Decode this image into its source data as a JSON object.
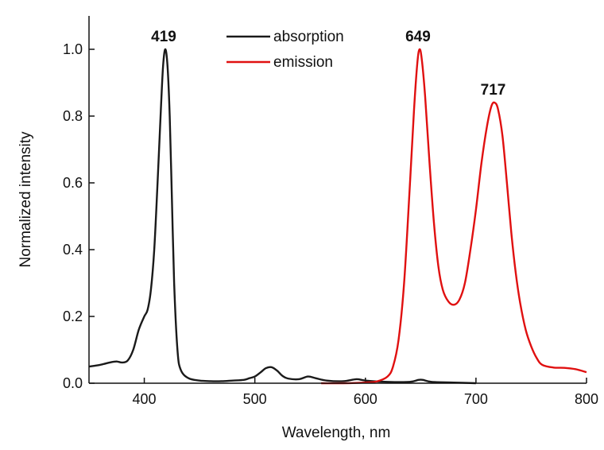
{
  "chart_data": {
    "type": "line",
    "title": "",
    "xlabel": "Wavelength, nm",
    "ylabel": "Normalized intensity",
    "xlim": [
      350,
      800
    ],
    "ylim": [
      0,
      1.1
    ],
    "x_ticks": [
      400,
      500,
      600,
      700,
      800
    ],
    "x_tick_labels": [
      "400",
      "500",
      "600",
      "700",
      "800"
    ],
    "y_ticks": [
      0.0,
      0.2,
      0.4,
      0.6,
      0.8,
      1.0
    ],
    "y_tick_labels": [
      "0.0",
      "0.2",
      "0.4",
      "0.6",
      "0.8",
      "1.0"
    ],
    "grid": false,
    "legend_position": "top-center",
    "series": [
      {
        "name": "absorption",
        "color": "#1a1a1a",
        "points": [
          [
            350,
            0.05
          ],
          [
            360,
            0.055
          ],
          [
            370,
            0.063
          ],
          [
            375,
            0.065
          ],
          [
            380,
            0.062
          ],
          [
            385,
            0.068
          ],
          [
            390,
            0.1
          ],
          [
            395,
            0.16
          ],
          [
            400,
            0.2
          ],
          [
            403,
            0.22
          ],
          [
            406,
            0.28
          ],
          [
            409,
            0.4
          ],
          [
            412,
            0.6
          ],
          [
            415,
            0.82
          ],
          [
            417,
            0.95
          ],
          [
            419,
            1.0
          ],
          [
            421,
            0.95
          ],
          [
            423,
            0.8
          ],
          [
            425,
            0.55
          ],
          [
            427,
            0.3
          ],
          [
            430,
            0.1
          ],
          [
            433,
            0.04
          ],
          [
            440,
            0.015
          ],
          [
            450,
            0.008
          ],
          [
            460,
            0.006
          ],
          [
            470,
            0.006
          ],
          [
            480,
            0.008
          ],
          [
            490,
            0.01
          ],
          [
            495,
            0.015
          ],
          [
            500,
            0.02
          ],
          [
            505,
            0.032
          ],
          [
            510,
            0.045
          ],
          [
            515,
            0.048
          ],
          [
            520,
            0.038
          ],
          [
            525,
            0.022
          ],
          [
            530,
            0.014
          ],
          [
            540,
            0.012
          ],
          [
            548,
            0.02
          ],
          [
            555,
            0.015
          ],
          [
            565,
            0.008
          ],
          [
            580,
            0.006
          ],
          [
            592,
            0.012
          ],
          [
            600,
            0.008
          ],
          [
            620,
            0.004
          ],
          [
            640,
            0.004
          ],
          [
            648,
            0.01
          ],
          [
            652,
            0.01
          ],
          [
            660,
            0.004
          ],
          [
            680,
            0.002
          ],
          [
            700,
            0.0
          ]
        ]
      },
      {
        "name": "emission",
        "color": "#e01010",
        "points": [
          [
            560,
            0.0
          ],
          [
            580,
            0.0
          ],
          [
            600,
            0.002
          ],
          [
            610,
            0.005
          ],
          [
            620,
            0.02
          ],
          [
            625,
            0.05
          ],
          [
            630,
            0.13
          ],
          [
            635,
            0.3
          ],
          [
            640,
            0.58
          ],
          [
            644,
            0.82
          ],
          [
            647,
            0.96
          ],
          [
            649,
            1.0
          ],
          [
            651,
            0.97
          ],
          [
            654,
            0.86
          ],
          [
            658,
            0.66
          ],
          [
            662,
            0.48
          ],
          [
            666,
            0.35
          ],
          [
            670,
            0.28
          ],
          [
            675,
            0.245
          ],
          [
            680,
            0.235
          ],
          [
            685,
            0.25
          ],
          [
            690,
            0.3
          ],
          [
            695,
            0.4
          ],
          [
            700,
            0.52
          ],
          [
            705,
            0.66
          ],
          [
            710,
            0.77
          ],
          [
            714,
            0.83
          ],
          [
            717,
            0.84
          ],
          [
            720,
            0.82
          ],
          [
            724,
            0.74
          ],
          [
            728,
            0.6
          ],
          [
            732,
            0.45
          ],
          [
            736,
            0.33
          ],
          [
            740,
            0.24
          ],
          [
            745,
            0.16
          ],
          [
            750,
            0.11
          ],
          [
            755,
            0.075
          ],
          [
            760,
            0.055
          ],
          [
            770,
            0.047
          ],
          [
            780,
            0.046
          ],
          [
            790,
            0.042
          ],
          [
            800,
            0.033
          ]
        ]
      }
    ],
    "annotations": [
      {
        "text": "419",
        "x": 419,
        "y": 1.0
      },
      {
        "text": "649",
        "x": 649,
        "y": 1.0
      },
      {
        "text": "717",
        "x": 717,
        "y": 0.84
      }
    ]
  }
}
